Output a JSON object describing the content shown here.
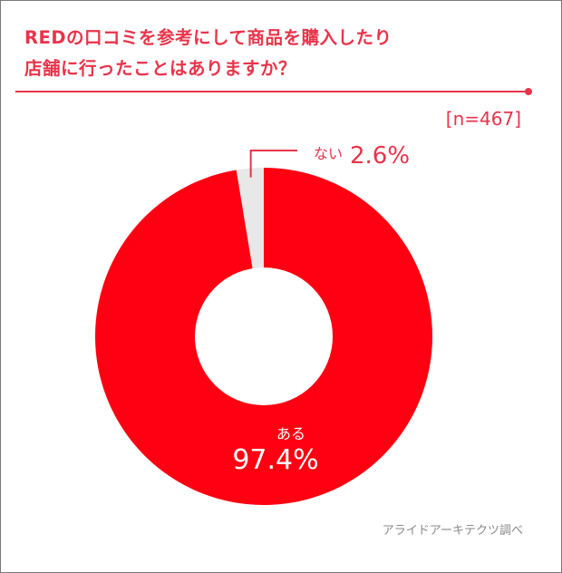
{
  "title_line1": "REDの口コミを参考にして商品を購入したり",
  "title_line2": "店舗に行ったことはありますか？",
  "sample_size": "[n=467]",
  "source": "アライドアーキテクツ調べ",
  "colors": {
    "accent": "#e8344a",
    "yes": "#fe0011",
    "no": "#e8e8e8",
    "text_red": "#e8344a",
    "text_white": "#ffffff"
  },
  "chart_data": {
    "type": "pie",
    "donut": true,
    "categories": [
      "ある",
      "ない"
    ],
    "values": [
      97.4,
      2.6
    ],
    "value_labels": [
      "97.4%",
      "2.6%"
    ],
    "start": "12 o'clock, clockwise"
  }
}
